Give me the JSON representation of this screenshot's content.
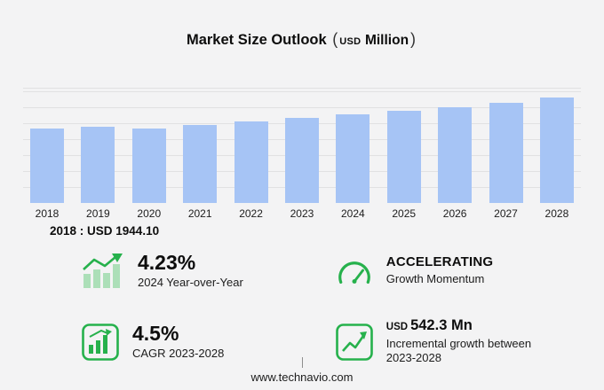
{
  "colors": {
    "accent": "#26b14c",
    "bar": "#a6c4f5",
    "grid": "#e1e1e2",
    "background": "#f3f3f4"
  },
  "title": {
    "main": "Market Size Outlook",
    "paren_open": "(",
    "currency": "USD",
    "unit": "Million",
    "paren_close": ")"
  },
  "chart_data": {
    "type": "bar",
    "categories": [
      "2018",
      "2019",
      "2020",
      "2021",
      "2022",
      "2023",
      "2024",
      "2025",
      "2026",
      "2027",
      "2028"
    ],
    "values": [
      1944.1,
      1990,
      1945,
      2030,
      2115,
      2204,
      2297,
      2395,
      2495,
      2615,
      2746
    ],
    "title": "Market Size Outlook (USD Million)",
    "xlabel": "",
    "ylabel": "USD Million",
    "ylim": [
      0,
      3000
    ],
    "grid": true,
    "legend": false,
    "bar_color": "#a6c4f5",
    "annotation": "2018 : USD 1944.10"
  },
  "annotation": "2018 : USD 1944.10",
  "stats": [
    {
      "icon": "growth-bars-arrow-icon",
      "value": "4.23%",
      "label": "2024 Year-over-Year"
    },
    {
      "icon": "speedometer-icon",
      "value": "ACCELERATING",
      "label": "Growth Momentum"
    },
    {
      "icon": "boxed-bar-chart-icon",
      "value": "4.5%",
      "label": "CAGR 2023-2028"
    },
    {
      "icon": "boxed-line-chart-icon",
      "value_prefix": "USD",
      "value": "542.3 Mn",
      "label": "Incremental growth between 2023-2028"
    }
  ],
  "footer": {
    "url": "www.technavio.com"
  }
}
